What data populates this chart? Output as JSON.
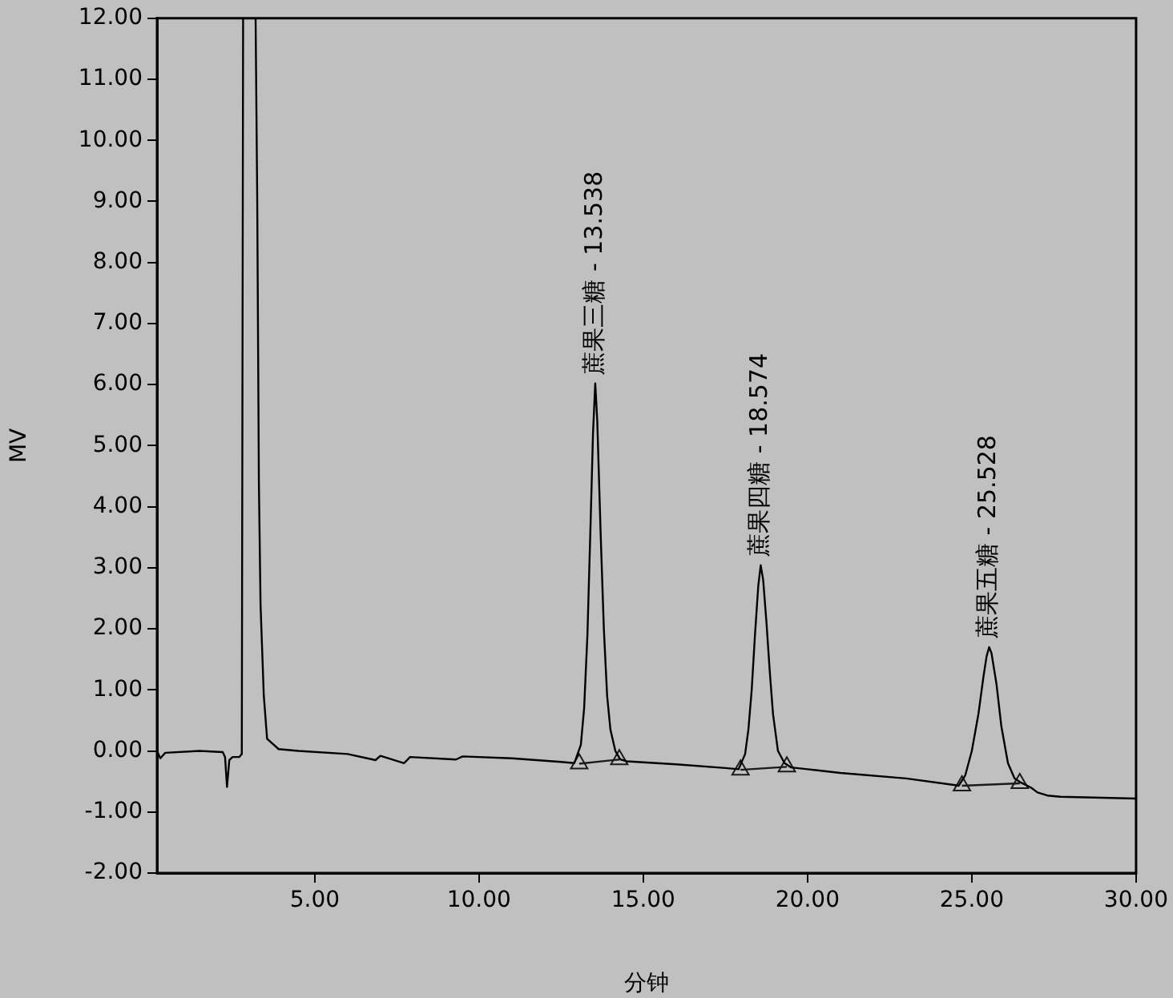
{
  "chart_data": {
    "type": "line",
    "xlabel": "分钟",
    "ylabel": "MV",
    "xlim": [
      0.2,
      30
    ],
    "ylim": [
      -2,
      12
    ],
    "xticks": [
      {
        "value": 5,
        "label": "5.00"
      },
      {
        "value": 10,
        "label": "10.00"
      },
      {
        "value": 15,
        "label": "15.00"
      },
      {
        "value": 20,
        "label": "20.00"
      },
      {
        "value": 25,
        "label": "25.00"
      },
      {
        "value": 30,
        "label": "30.00"
      }
    ],
    "yticks": [
      {
        "value": -2,
        "label": "-2.00"
      },
      {
        "value": -1,
        "label": "-1.00"
      },
      {
        "value": 0,
        "label": "0.00"
      },
      {
        "value": 1,
        "label": "1.00"
      },
      {
        "value": 2,
        "label": "2.00"
      },
      {
        "value": 3,
        "label": "3.00"
      },
      {
        "value": 4,
        "label": "4.00"
      },
      {
        "value": 5,
        "label": "5.00"
      },
      {
        "value": 6,
        "label": "6.00"
      },
      {
        "value": 7,
        "label": "7.00"
      },
      {
        "value": 8,
        "label": "8.00"
      },
      {
        "value": 9,
        "label": "9.00"
      },
      {
        "value": 10,
        "label": "10.00"
      },
      {
        "value": 11,
        "label": "11.00"
      },
      {
        "value": 12,
        "label": "12.00"
      }
    ],
    "grid": false,
    "legend": false,
    "marker": "none",
    "line_style": "solid",
    "series": [
      {
        "color": "#000000",
        "x": [
          0.2,
          0.3,
          0.45,
          1.5,
          2.2,
          2.27,
          2.33,
          2.4,
          2.5,
          2.7,
          2.78,
          2.82,
          3.0,
          3.2,
          3.25,
          3.3,
          3.35,
          3.45,
          3.55,
          3.9,
          4.5,
          6.0,
          6.85,
          7.0,
          7.72,
          7.9,
          9.3,
          9.5,
          11,
          12.5,
          12.9,
          13.1,
          13.2,
          13.3,
          13.4,
          13.47,
          13.538,
          13.6,
          13.7,
          13.8,
          13.9,
          14.0,
          14.15,
          14.3,
          14.5,
          16,
          17.5,
          17.9,
          18.1,
          18.2,
          18.3,
          18.4,
          18.5,
          18.574,
          18.65,
          18.75,
          18.85,
          18.95,
          19.1,
          19.3,
          19.5,
          20,
          21,
          23,
          24.5,
          24.6,
          24.8,
          25.0,
          25.2,
          25.35,
          25.45,
          25.528,
          25.6,
          25.75,
          25.9,
          26.1,
          26.3,
          26.5,
          26.8,
          27.0,
          27.3,
          27.7,
          30
        ],
        "values": [
          0.0,
          -0.12,
          -0.03,
          0.0,
          -0.02,
          -0.1,
          -0.59,
          -0.15,
          -0.1,
          -0.1,
          -0.05,
          12,
          null,
          12,
          9.0,
          4.4,
          2.4,
          0.9,
          0.2,
          0.03,
          0.0,
          -0.05,
          -0.15,
          -0.08,
          -0.2,
          -0.1,
          -0.14,
          -0.09,
          -0.12,
          -0.18,
          -0.2,
          0.1,
          0.7,
          1.9,
          3.8,
          5.2,
          6.02,
          5.4,
          3.6,
          2.0,
          0.9,
          0.35,
          0.0,
          -0.14,
          -0.17,
          -0.22,
          -0.28,
          -0.3,
          -0.05,
          0.35,
          1.0,
          1.9,
          2.7,
          3.04,
          2.8,
          2.1,
          1.3,
          0.6,
          0.0,
          -0.2,
          -0.27,
          -0.3,
          -0.36,
          -0.45,
          -0.56,
          -0.57,
          -0.4,
          0.0,
          0.6,
          1.2,
          1.55,
          1.7,
          1.6,
          1.1,
          0.4,
          -0.2,
          -0.45,
          -0.52,
          -0.6,
          -0.68,
          -0.73,
          -0.75,
          -0.78
        ]
      },
      {
        "type": "line",
        "marker": "triangle",
        "color": "#1a1a1a",
        "x": [
          13.05,
          14.27
        ],
        "values": [
          -0.21,
          -0.14
        ]
      },
      {
        "type": "line",
        "marker": "triangle",
        "color": "#1a1a1a",
        "x": [
          17.96,
          19.37
        ],
        "values": [
          -0.31,
          -0.26
        ]
      },
      {
        "type": "line",
        "marker": "triangle",
        "color": "#1a1a1a",
        "x": [
          24.7,
          26.46
        ],
        "values": [
          -0.57,
          -0.53
        ]
      }
    ],
    "annotations": [
      {
        "text": "蔗果三糖 - 13.538",
        "x": 13.538,
        "y": 6.02
      },
      {
        "text": "蔗果四糖 - 18.574",
        "x": 18.574,
        "y": 3.04
      },
      {
        "text": "蔗果五糖 - 25.528",
        "x": 25.528,
        "y": 1.7
      }
    ]
  }
}
